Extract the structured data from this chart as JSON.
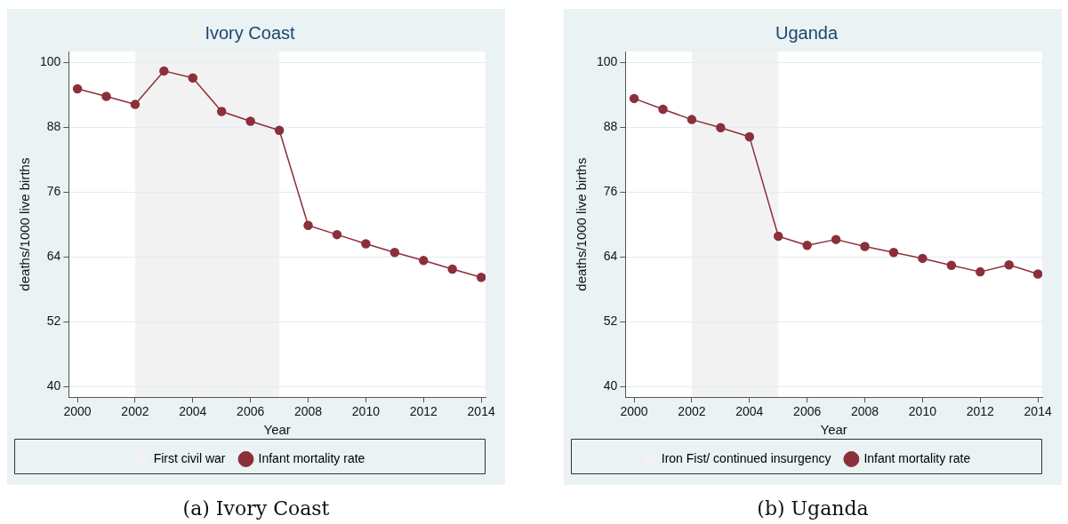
{
  "chart_data": [
    {
      "type": "line",
      "title": "Ivory Coast",
      "xlabel": "Year",
      "ylabel": "deaths/1000 live births",
      "x": [
        2000,
        2001,
        2002,
        2003,
        2004,
        2005,
        2006,
        2007,
        2008,
        2009,
        2010,
        2011,
        2012,
        2013,
        2014
      ],
      "series": [
        {
          "name": "Infant mortality rate",
          "color": "#8b2f3a",
          "values": [
            95.1,
            93.7,
            92.2,
            98.4,
            97.1,
            90.9,
            89.1,
            87.4,
            69.8,
            68.1,
            66.4,
            64.8,
            63.3,
            61.7,
            60.2
          ]
        }
      ],
      "bands": [
        {
          "axis": "x",
          "from": 2002,
          "to": 2007,
          "label": "First civil war",
          "color": "#f2f2f2"
        }
      ],
      "xlim": [
        1999.7,
        2014.15
      ],
      "xticks": [
        2000,
        2002,
        2004,
        2006,
        2008,
        2010,
        2012,
        2014
      ],
      "ylim": [
        38,
        102
      ],
      "yticks": [
        40,
        52,
        64,
        76,
        88,
        100
      ],
      "grid": "y",
      "legend": "bottom",
      "marker": "circle",
      "line_style": "solid",
      "annotations": [
        "(a) Ivory Coast"
      ]
    },
    {
      "type": "line",
      "title": "Uganda",
      "xlabel": "Year",
      "ylabel": "deaths/1000 live births",
      "x": [
        2000,
        2001,
        2002,
        2003,
        2004,
        2005,
        2006,
        2007,
        2008,
        2009,
        2010,
        2011,
        2012,
        2013,
        2014
      ],
      "series": [
        {
          "name": "Infant mortality rate",
          "color": "#8b2f3a",
          "values": [
            93.3,
            91.3,
            89.4,
            87.9,
            86.2,
            67.8,
            66.1,
            67.2,
            65.9,
            64.8,
            63.7,
            62.4,
            61.2,
            62.5,
            60.8
          ]
        }
      ],
      "bands": [
        {
          "axis": "x",
          "from": 2002,
          "to": 2005,
          "label": "Iron Fist/ continued insurgency",
          "color": "#f2f2f2"
        }
      ],
      "xlim": [
        1999.7,
        2014.15
      ],
      "xticks": [
        2000,
        2002,
        2004,
        2006,
        2008,
        2010,
        2012,
        2014
      ],
      "ylim": [
        38,
        102
      ],
      "yticks": [
        40,
        52,
        64,
        76,
        88,
        100
      ],
      "grid": "y",
      "legend": "bottom",
      "marker": "circle",
      "line_style": "solid",
      "annotations": [
        "(b) Uganda"
      ]
    }
  ]
}
